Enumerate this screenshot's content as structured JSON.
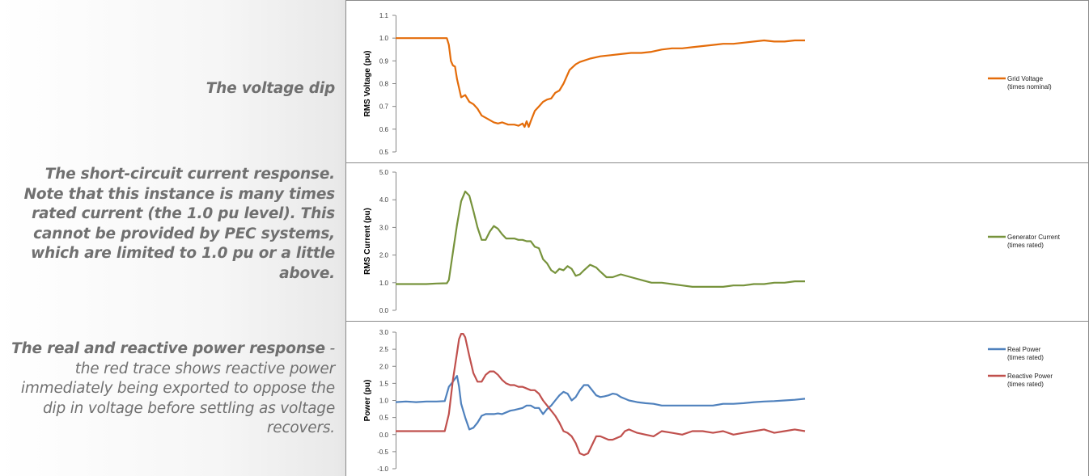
{
  "annotations": {
    "voltage": "The voltage dip",
    "current": {
      "bold": "The short-circuit current response. Note that this instance is many times rated current (the 1.0 pu level). This cannot be provided by PEC systems, which are limited to 1.0 pu or a little above."
    },
    "power": {
      "bold": "The real and reactive power response",
      "normal": " - the red trace shows reactive power immediately being exported to oppose the dip in voltage before settling as voltage recovers."
    }
  },
  "chart_data": [
    {
      "type": "line",
      "ylabel": "RMS Voltage (pu)",
      "ylim": [
        0.5,
        1.1
      ],
      "yticks": [
        "0.5",
        "0.6",
        "0.7",
        "0.8",
        "0.9",
        "1.0",
        "1.1"
      ],
      "grid": false,
      "legend": "right",
      "x": [
        0,
        5,
        10,
        15,
        20,
        25,
        26,
        27,
        28,
        29,
        30,
        32,
        34,
        36,
        38,
        40,
        42,
        45,
        48,
        50,
        52,
        55,
        58,
        60,
        62,
        63,
        64,
        65,
        66,
        68,
        70,
        72,
        74,
        76,
        78,
        80,
        82,
        85,
        88,
        90,
        95,
        100,
        105,
        110,
        115,
        120,
        125,
        130,
        135,
        140,
        145,
        150,
        155,
        160,
        165,
        170,
        175,
        180,
        185,
        190,
        195,
        200
      ],
      "series": [
        {
          "name": "Grid Voltage (times nominal)",
          "color": "#e46c0a",
          "values": [
            1.0,
            1.0,
            1.0,
            1.0,
            1.0,
            1.0,
            0.97,
            0.9,
            0.88,
            0.875,
            0.82,
            0.74,
            0.75,
            0.72,
            0.71,
            0.69,
            0.66,
            0.645,
            0.63,
            0.625,
            0.63,
            0.62,
            0.62,
            0.615,
            0.625,
            0.61,
            0.635,
            0.61,
            0.635,
            0.68,
            0.7,
            0.72,
            0.73,
            0.735,
            0.76,
            0.77,
            0.8,
            0.86,
            0.885,
            0.895,
            0.91,
            0.92,
            0.925,
            0.93,
            0.935,
            0.935,
            0.94,
            0.95,
            0.955,
            0.955,
            0.96,
            0.965,
            0.97,
            0.975,
            0.975,
            0.98,
            0.985,
            0.99,
            0.985,
            0.985,
            0.99,
            0.99
          ]
        }
      ]
    },
    {
      "type": "line",
      "ylabel": "RMS Current (pu)",
      "ylim": [
        0.0,
        5.0
      ],
      "yticks": [
        "0.0",
        "1.0",
        "2.0",
        "3.0",
        "4.0",
        "5.0"
      ],
      "grid": false,
      "legend": "right",
      "x": [
        0,
        5,
        10,
        15,
        20,
        25,
        26,
        28,
        30,
        32,
        34,
        36,
        38,
        40,
        42,
        44,
        46,
        48,
        50,
        52,
        54,
        56,
        58,
        60,
        62,
        64,
        66,
        68,
        70,
        72,
        74,
        76,
        78,
        80,
        82,
        84,
        86,
        88,
        90,
        92,
        95,
        98,
        100,
        103,
        106,
        110,
        115,
        120,
        125,
        130,
        135,
        140,
        145,
        150,
        155,
        160,
        165,
        170,
        175,
        180,
        185,
        190,
        195,
        200
      ],
      "series": [
        {
          "name": "Generator Current (times rated)",
          "color": "#77933c",
          "values": [
            0.95,
            0.95,
            0.95,
            0.95,
            0.97,
            0.98,
            1.1,
            2.1,
            3.1,
            3.95,
            4.3,
            4.15,
            3.6,
            3.0,
            2.55,
            2.55,
            2.85,
            3.05,
            2.95,
            2.75,
            2.6,
            2.6,
            2.6,
            2.55,
            2.55,
            2.5,
            2.5,
            2.3,
            2.25,
            1.85,
            1.7,
            1.45,
            1.35,
            1.5,
            1.45,
            1.6,
            1.5,
            1.25,
            1.3,
            1.45,
            1.65,
            1.55,
            1.4,
            1.2,
            1.2,
            1.3,
            1.2,
            1.1,
            1.0,
            1.0,
            0.95,
            0.9,
            0.85,
            0.85,
            0.85,
            0.85,
            0.9,
            0.9,
            0.95,
            0.95,
            1.0,
            1.0,
            1.05,
            1.05
          ]
        }
      ]
    },
    {
      "type": "line",
      "ylabel": "Power (pu)",
      "ylim": [
        -1.0,
        3.0
      ],
      "yticks": [
        "-1.0",
        "-0.5",
        "0.0",
        "0.5",
        "1.0",
        "1.5",
        "2.0",
        "2.5",
        "3.0"
      ],
      "grid": false,
      "legend": "top-right",
      "x": [
        0,
        5,
        10,
        15,
        20,
        24,
        26,
        28,
        30,
        31,
        32,
        33,
        34,
        36,
        38,
        40,
        42,
        44,
        46,
        48,
        50,
        52,
        54,
        56,
        58,
        60,
        62,
        64,
        66,
        68,
        70,
        72,
        74,
        76,
        78,
        80,
        82,
        84,
        86,
        88,
        90,
        92,
        94,
        96,
        98,
        100,
        102,
        104,
        106,
        108,
        110,
        112,
        114,
        118,
        122,
        126,
        130,
        135,
        140,
        145,
        150,
        155,
        160,
        165,
        170,
        175,
        180,
        185,
        190,
        195,
        200
      ],
      "series": [
        {
          "name": "Real Power (times rated)",
          "color": "#4f81bd",
          "values": [
            0.95,
            0.97,
            0.95,
            0.97,
            0.97,
            0.98,
            1.4,
            1.55,
            1.72,
            1.4,
            0.9,
            0.7,
            0.5,
            0.15,
            0.2,
            0.35,
            0.55,
            0.6,
            0.6,
            0.6,
            0.62,
            0.6,
            0.65,
            0.7,
            0.72,
            0.75,
            0.78,
            0.85,
            0.85,
            0.78,
            0.78,
            0.6,
            0.75,
            0.85,
            1.0,
            1.15,
            1.25,
            1.2,
            1.0,
            1.1,
            1.3,
            1.45,
            1.45,
            1.3,
            1.15,
            1.1,
            1.12,
            1.15,
            1.2,
            1.18,
            1.1,
            1.05,
            1.0,
            0.95,
            0.92,
            0.9,
            0.85,
            0.85,
            0.85,
            0.85,
            0.85,
            0.85,
            0.9,
            0.9,
            0.92,
            0.95,
            0.97,
            0.98,
            1.0,
            1.02,
            1.05
          ]
        },
        {
          "name": "Reactive Power (times rated)",
          "color": "#c0504d",
          "values": [
            0.1,
            0.1,
            0.1,
            0.1,
            0.1,
            0.1,
            0.6,
            1.6,
            2.4,
            2.8,
            2.95,
            2.95,
            2.85,
            2.3,
            1.8,
            1.55,
            1.55,
            1.75,
            1.85,
            1.85,
            1.75,
            1.6,
            1.5,
            1.45,
            1.45,
            1.4,
            1.4,
            1.35,
            1.3,
            1.3,
            1.2,
            1.0,
            0.85,
            0.7,
            0.55,
            0.35,
            0.1,
            0.05,
            -0.05,
            -0.25,
            -0.55,
            -0.6,
            -0.55,
            -0.3,
            -0.05,
            -0.05,
            -0.1,
            -0.15,
            -0.15,
            -0.1,
            -0.05,
            0.1,
            0.15,
            0.05,
            0.0,
            -0.05,
            0.1,
            0.05,
            0.0,
            0.1,
            0.1,
            0.05,
            0.1,
            0.0,
            0.05,
            0.1,
            0.15,
            0.05,
            0.1,
            0.15,
            0.1
          ]
        }
      ]
    }
  ]
}
